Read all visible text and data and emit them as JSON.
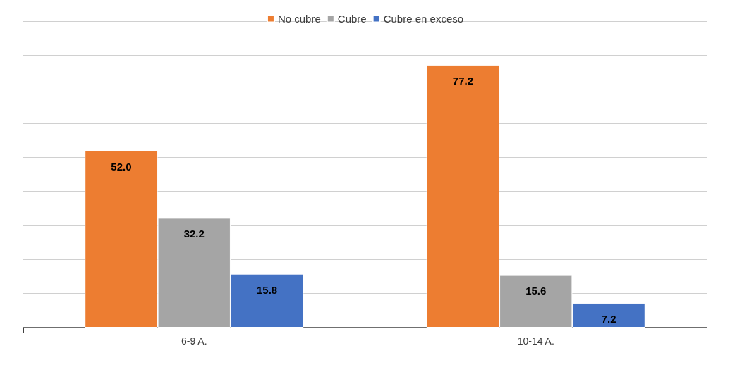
{
  "chart_data": {
    "type": "bar",
    "categories": [
      "6-9 A.",
      "10-14 A."
    ],
    "series": [
      {
        "name": "No cubre",
        "color": "#ed7d31",
        "values": [
          52.0,
          77.2
        ],
        "value_labels": [
          "52.0",
          "77.2"
        ]
      },
      {
        "name": "Cubre",
        "color": "#a5a5a5",
        "values": [
          32.2,
          15.6
        ],
        "value_labels": [
          "32.2",
          "15.6"
        ]
      },
      {
        "name": "Cubre en exceso",
        "color": "#4472c4",
        "values": [
          15.8,
          7.2
        ],
        "value_labels": [
          "15.8",
          "7.2"
        ]
      }
    ],
    "ylim": [
      0,
      90
    ],
    "yticks": [
      {
        "value": 0,
        "label": null
      },
      {
        "value": 10,
        "label": null
      },
      {
        "value": 20,
        "label": null
      },
      {
        "value": 30,
        "label": null
      },
      {
        "value": 40,
        "label": null
      },
      {
        "value": 50,
        "label": null
      },
      {
        "value": 60,
        "label": null
      },
      {
        "value": 70,
        "label": null
      },
      {
        "value": 80,
        "label": null
      },
      {
        "value": 90,
        "label": null
      }
    ],
    "tick_labels": "x",
    "grid": "y",
    "legend": "top"
  }
}
